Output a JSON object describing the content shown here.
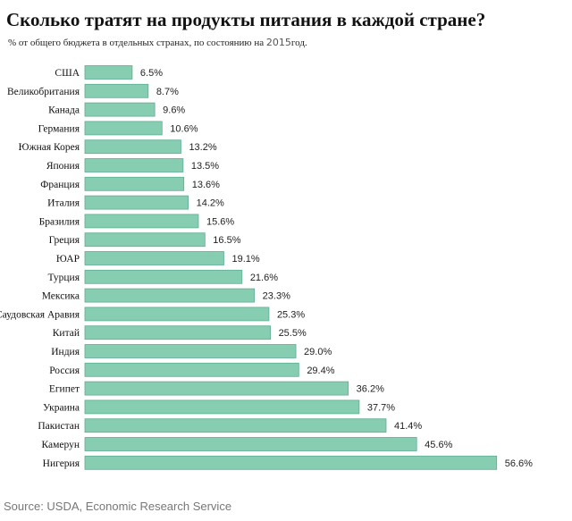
{
  "chart_data": {
    "type": "bar",
    "orientation": "horizontal",
    "title": "Сколько тратят на продукты питания в каждой стране?",
    "subtitle_prefix": "% от общего бюджета в отдельных странах, по состоянию на ",
    "subtitle_year": "2015",
    "subtitle_suffix": "год.",
    "source": "Source: USDA, Economic Research Service",
    "categories": [
      "США",
      "Великобритания",
      "Канада",
      "Германия",
      "Южная Корея",
      "Япония",
      "Франция",
      "Италия",
      "Бразилия",
      "Греция",
      "ЮАР",
      "Турция",
      "Мексика",
      "Саудовская Аравия",
      "Китай",
      "Индия",
      "Россия",
      "Египет",
      "Украина",
      "Пакистан",
      "Камерун",
      "Нигерия"
    ],
    "values": [
      6.5,
      8.7,
      9.6,
      10.6,
      13.2,
      13.5,
      13.6,
      14.2,
      15.6,
      16.5,
      19.1,
      21.6,
      23.3,
      25.3,
      25.5,
      29.0,
      29.4,
      36.2,
      37.7,
      41.4,
      45.6,
      56.6
    ],
    "value_labels": [
      "6.5%",
      "8.7%",
      "9.6%",
      "10.6%",
      "13.2%",
      "13.5%",
      "13.6%",
      "14.2%",
      "15.6%",
      "16.5%",
      "19.1%",
      "21.6%",
      "23.3%",
      "25.3%",
      "25.5%",
      "29.0%",
      "29.4%",
      "36.2%",
      "37.7%",
      "41.4%",
      "45.6%",
      "56.6%"
    ],
    "unit": "%",
    "bar_color": "#86cdb2",
    "bar_border": "#5fae93",
    "grid": false
  }
}
